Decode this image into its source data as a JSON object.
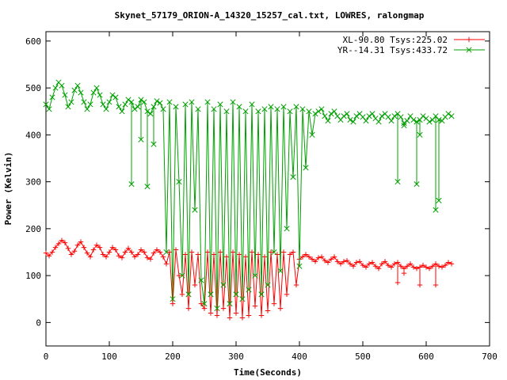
{
  "chart_data": {
    "type": "line",
    "title": "Skynet_57179_ORION-A_14320_15257_cal.txt, LOWRES, ralongmap",
    "xlabel": "Time(Seconds)",
    "ylabel": "Power (Kelvin)",
    "xlim": [
      0,
      700
    ],
    "ylim": [
      -50,
      620
    ],
    "xticks": [
      0,
      100,
      200,
      300,
      400,
      500,
      600,
      700
    ],
    "yticks": [
      0,
      100,
      200,
      300,
      400,
      500,
      600
    ],
    "grid": false,
    "legend_position": "top-right",
    "series": [
      {
        "name": "XL-90.80 Tsys:225.02",
        "color": "#ff0000",
        "marker": "plus",
        "x": [
          0,
          5,
          10,
          15,
          20,
          25,
          30,
          35,
          40,
          45,
          50,
          55,
          60,
          65,
          70,
          75,
          80,
          85,
          90,
          95,
          100,
          105,
          110,
          115,
          120,
          125,
          130,
          135,
          140,
          145,
          150,
          155,
          160,
          165,
          170,
          175,
          180,
          185,
          190,
          195,
          200,
          205,
          210,
          215,
          220,
          225,
          230,
          235,
          240,
          245,
          250,
          255,
          260,
          265,
          270,
          275,
          280,
          285,
          290,
          295,
          300,
          305,
          310,
          315,
          320,
          325,
          330,
          335,
          340,
          345,
          350,
          355,
          360,
          365,
          370,
          375,
          380,
          385,
          390,
          395,
          400,
          405,
          410,
          415,
          420,
          425,
          430,
          435,
          440,
          445,
          450,
          455,
          460,
          465,
          470,
          475,
          480,
          485,
          490,
          495,
          500,
          505,
          510,
          515,
          520,
          525,
          530,
          535,
          540,
          545,
          550,
          555,
          560,
          565,
          570,
          575,
          580,
          585,
          590,
          595,
          600,
          605,
          610,
          615,
          620,
          625,
          630,
          635,
          640
        ],
        "y": [
          148,
          142,
          150,
          160,
          168,
          175,
          170,
          158,
          145,
          152,
          165,
          172,
          160,
          148,
          140,
          155,
          165,
          160,
          145,
          140,
          150,
          160,
          155,
          142,
          138,
          150,
          158,
          150,
          140,
          145,
          155,
          150,
          138,
          135,
          148,
          155,
          150,
          140,
          125,
          150,
          40,
          155,
          100,
          60,
          145,
          30,
          150,
          80,
          145,
          40,
          30,
          150,
          20,
          145,
          15,
          150,
          30,
          140,
          10,
          150,
          20,
          145,
          10,
          140,
          15,
          150,
          35,
          145,
          15,
          140,
          25,
          150,
          40,
          145,
          30,
          150,
          60,
          145,
          150,
          80,
          135,
          140,
          145,
          140,
          135,
          130,
          138,
          140,
          132,
          128,
          135,
          140,
          130,
          125,
          130,
          132,
          125,
          120,
          128,
          130,
          122,
          118,
          125,
          128,
          120,
          115,
          125,
          130,
          122,
          118,
          125,
          128,
          120,
          115,
          120,
          125,
          118,
          115,
          118,
          122,
          118,
          115,
          120,
          125,
          120,
          118,
          122,
          128,
          125
        ],
        "dips": [
          [
            555,
            85
          ],
          [
            565,
            105
          ],
          [
            590,
            80
          ],
          [
            615,
            80
          ]
        ]
      },
      {
        "name": "YR--14.31 Tsys:433.72",
        "color": "#00a000",
        "marker": "cross",
        "x": [
          0,
          5,
          10,
          15,
          20,
          25,
          30,
          35,
          40,
          45,
          50,
          55,
          60,
          65,
          70,
          75,
          80,
          85,
          90,
          95,
          100,
          105,
          110,
          115,
          120,
          125,
          130,
          135,
          140,
          145,
          150,
          155,
          160,
          165,
          170,
          175,
          180,
          185,
          190,
          195,
          200,
          205,
          210,
          215,
          220,
          225,
          230,
          235,
          240,
          245,
          250,
          255,
          260,
          265,
          270,
          275,
          280,
          285,
          290,
          295,
          300,
          305,
          310,
          315,
          320,
          325,
          330,
          335,
          340,
          345,
          350,
          355,
          360,
          365,
          370,
          375,
          380,
          385,
          390,
          395,
          400,
          405,
          410,
          415,
          420,
          425,
          430,
          435,
          440,
          445,
          450,
          455,
          460,
          465,
          470,
          475,
          480,
          485,
          490,
          495,
          500,
          505,
          510,
          515,
          520,
          525,
          530,
          535,
          540,
          545,
          550,
          555,
          560,
          565,
          570,
          575,
          580,
          585,
          590,
          595,
          600,
          605,
          610,
          615,
          620,
          625,
          630,
          635,
          640
        ],
        "y": [
          465,
          455,
          480,
          500,
          512,
          505,
          485,
          460,
          470,
          495,
          505,
          490,
          470,
          455,
          465,
          490,
          500,
          485,
          465,
          455,
          470,
          485,
          480,
          460,
          450,
          465,
          475,
          470,
          455,
          460,
          475,
          470,
          450,
          445,
          460,
          472,
          468,
          455,
          150,
          470,
          50,
          460,
          300,
          100,
          465,
          60,
          470,
          240,
          455,
          90,
          40,
          470,
          60,
          455,
          30,
          465,
          80,
          450,
          40,
          470,
          60,
          460,
          50,
          450,
          70,
          465,
          100,
          450,
          60,
          455,
          80,
          460,
          150,
          455,
          110,
          460,
          200,
          450,
          310,
          460,
          120,
          455,
          330,
          450,
          400,
          445,
          450,
          455,
          440,
          430,
          445,
          450,
          440,
          432,
          440,
          445,
          432,
          428,
          440,
          445,
          438,
          430,
          440,
          445,
          435,
          428,
          440,
          445,
          438,
          430,
          440,
          445,
          438,
          425,
          430,
          440,
          432,
          428,
          432,
          440,
          435,
          428,
          432,
          440,
          432,
          430,
          438,
          445,
          440
        ],
        "dips": [
          [
            135,
            295
          ],
          [
            150,
            390
          ],
          [
            160,
            290
          ],
          [
            170,
            380
          ],
          [
            555,
            300
          ],
          [
            565,
            420
          ],
          [
            585,
            295
          ],
          [
            590,
            400
          ],
          [
            615,
            240
          ],
          [
            620,
            260
          ]
        ]
      }
    ]
  }
}
